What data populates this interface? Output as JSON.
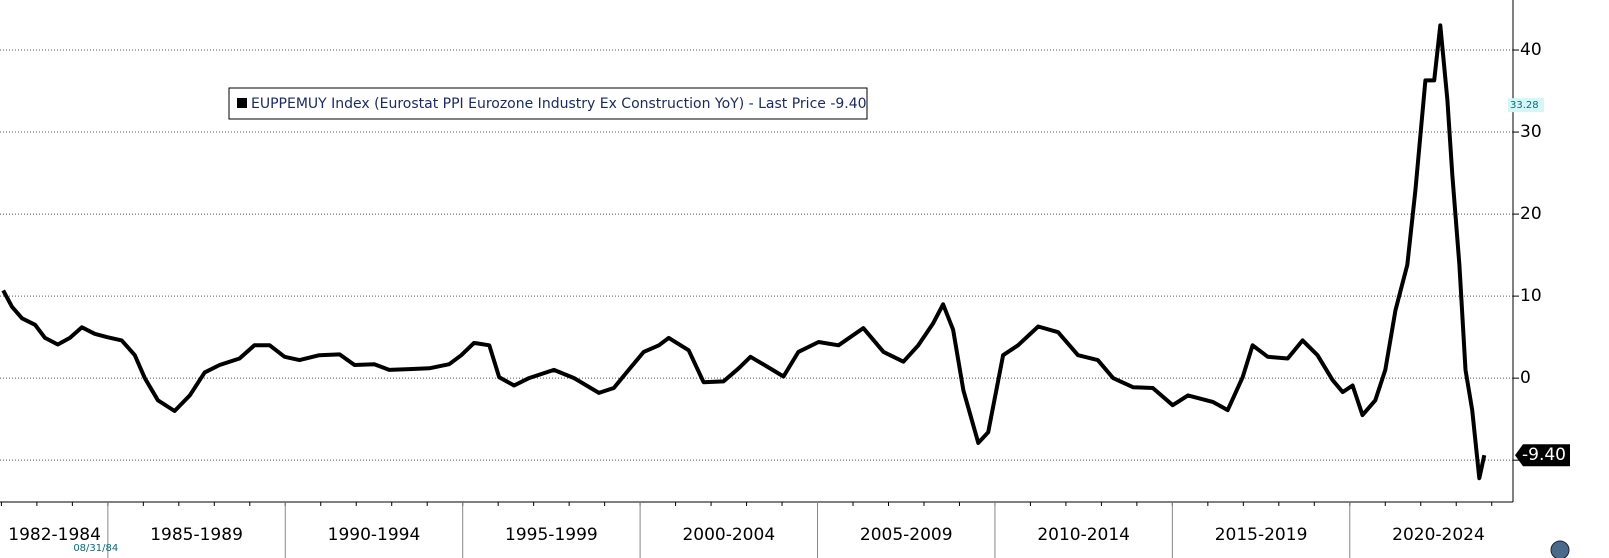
{
  "chart_data": {
    "type": "line",
    "series": [
      {
        "name": "EUPPEMUY Index (Eurostat PPI Eurozone Industry Ex Construction YoY) - Last Price -9.40",
        "color": "#000000",
        "x": [
          1982.05,
          1982.3,
          1982.58,
          1982.95,
          1983.23,
          1983.59,
          1983.93,
          1984.27,
          1984.63,
          1984.97,
          1985.39,
          1985.76,
          1986.04,
          1986.41,
          1986.88,
          1987.31,
          1987.73,
          1988.15,
          1988.71,
          1989.13,
          1989.56,
          1989.98,
          1990.4,
          1990.96,
          1991.53,
          1991.95,
          1992.51,
          1992.93,
          1993.49,
          1994.06,
          1994.62,
          1994.96,
          1995.32,
          1995.75,
          1996.03,
          1996.45,
          1996.87,
          1997.57,
          1998.14,
          1998.84,
          1999.26,
          1999.68,
          2000.1,
          2000.53,
          2000.81,
          2001.37,
          2001.79,
          2002.35,
          2002.78,
          2003.11,
          2003.62,
          2004.04,
          2004.46,
          2005.03,
          2005.59,
          2006.29,
          2006.86,
          2007.42,
          2007.84,
          2008.26,
          2008.54,
          2008.82,
          2009.11,
          2009.53,
          2009.81,
          2010.23,
          2010.65,
          2011.22,
          2011.78,
          2012.34,
          2012.9,
          2013.33,
          2013.89,
          2014.45,
          2015.01,
          2015.44,
          2016.14,
          2016.56,
          2016.98,
          2017.26,
          2017.69,
          2018.25,
          2018.67,
          2019.09,
          2019.51,
          2019.8,
          2020.08,
          2020.36,
          2020.72,
          2021.0,
          2021.29,
          2021.62,
          2021.85,
          2022.13,
          2022.38,
          2022.55,
          2022.75,
          2022.89,
          2023.09,
          2023.26,
          2023.45,
          2023.65,
          2023.79
        ],
        "values": [
          10.7,
          8.7,
          7.3,
          6.5,
          4.9,
          4.1,
          4.9,
          6.2,
          5.4,
          5.0,
          4.6,
          2.8,
          0,
          -2.7,
          -4.0,
          -2.1,
          0.7,
          1.6,
          2.4,
          4.0,
          4.0,
          2.6,
          2.2,
          2.8,
          2.9,
          1.6,
          1.7,
          1.0,
          1.1,
          1.2,
          1.7,
          2.8,
          4.3,
          4.0,
          0.1,
          -0.9,
          0,
          1.0,
          0,
          -1.8,
          -1.2,
          1.0,
          3.2,
          4.0,
          4.9,
          3.4,
          -0.5,
          -0.4,
          1.2,
          2.6,
          1.3,
          0.2,
          3.2,
          4.4,
          4.0,
          6.1,
          3.2,
          2.0,
          4.0,
          6.7,
          9.0,
          5.9,
          -1.5,
          -7.9,
          -6.6,
          2.8,
          4.0,
          6.3,
          5.6,
          2.8,
          2.2,
          0,
          -1.1,
          -1.2,
          -3.3,
          -2.1,
          -2.9,
          -3.9,
          0.1,
          4.0,
          2.6,
          2.4,
          4.6,
          2.8,
          -0.2,
          -1.7,
          -0.9,
          -4.5,
          -2.7,
          1.0,
          8.3,
          13.8,
          22.9,
          36.3,
          36.3,
          43.0,
          33.9,
          24.8,
          13.8,
          1.0,
          -3.9,
          -12.2,
          -9.4
        ]
      }
    ],
    "last_value_label": "-9.40",
    "y_marker": {
      "label": "33.28",
      "value": 33.28
    },
    "x_cursor": {
      "label": "08/31/84",
      "value": 1984.66
    },
    "xlim": [
      1982,
      2024.6
    ],
    "ylim": [
      -15.1,
      46.1
    ],
    "yticks": [
      -10,
      0,
      10,
      20,
      30,
      40
    ],
    "xbands": [
      {
        "label": "1982-1984",
        "from": 1982,
        "to": 1985
      },
      {
        "label": "1985-1989",
        "from": 1985,
        "to": 1990
      },
      {
        "label": "1990-1994",
        "from": 1990,
        "to": 1995
      },
      {
        "label": "1995-1999",
        "from": 1995,
        "to": 2000
      },
      {
        "label": "2000-2004",
        "from": 2000,
        "to": 2005
      },
      {
        "label": "2005-2009",
        "from": 2005,
        "to": 2010
      },
      {
        "label": "2010-2014",
        "from": 2010,
        "to": 2015
      },
      {
        "label": "2015-2019",
        "from": 2015,
        "to": 2020
      },
      {
        "label": "2020-2024",
        "from": 2020,
        "to": 2025
      }
    ],
    "grid": true
  }
}
